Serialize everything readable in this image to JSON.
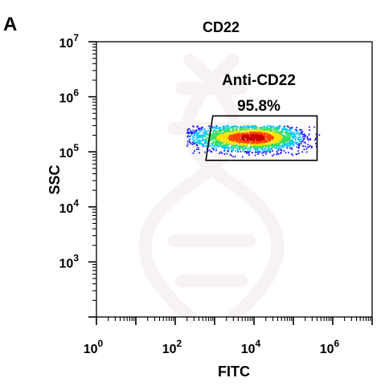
{
  "panel_label": "A",
  "chart_data": {
    "type": "scatter",
    "subtype": "flow-cytometry-density-dot-plot",
    "title": "CD22",
    "xlabel": "FITC",
    "ylabel": "SSC",
    "x_scale": "log",
    "y_scale": "log",
    "xlim": [
      1,
      10000000
    ],
    "ylim": [
      100,
      10000000
    ],
    "x_ticks": [
      {
        "value": 1,
        "base": "10",
        "exp": "0"
      },
      {
        "value": 100,
        "base": "10",
        "exp": "2"
      },
      {
        "value": 10000,
        "base": "10",
        "exp": "4"
      },
      {
        "value": 1000000,
        "base": "10",
        "exp": "6"
      }
    ],
    "y_ticks": [
      {
        "value": 1000,
        "base": "10",
        "exp": "3"
      },
      {
        "value": 10000,
        "base": "10",
        "exp": "4"
      },
      {
        "value": 100000,
        "base": "10",
        "exp": "5"
      },
      {
        "value": 1000000,
        "base": "10",
        "exp": "6"
      },
      {
        "value": 10000000,
        "base": "10",
        "exp": "7"
      }
    ],
    "population": {
      "x_range": [
        200,
        500000
      ],
      "y_range": [
        80000,
        300000
      ],
      "x_center": 10000,
      "y_center": 180000,
      "density_colors": [
        "#1a1aff",
        "#00c8ff",
        "#30e060",
        "#ffe000",
        "#ff4000",
        "#c80000"
      ]
    },
    "gate": {
      "name": "Anti-CD22",
      "percent": "95.8%",
      "vertices": [
        [
          900,
          450000
        ],
        [
          400000,
          450000
        ],
        [
          400000,
          70000
        ],
        [
          600,
          70000
        ]
      ]
    }
  }
}
